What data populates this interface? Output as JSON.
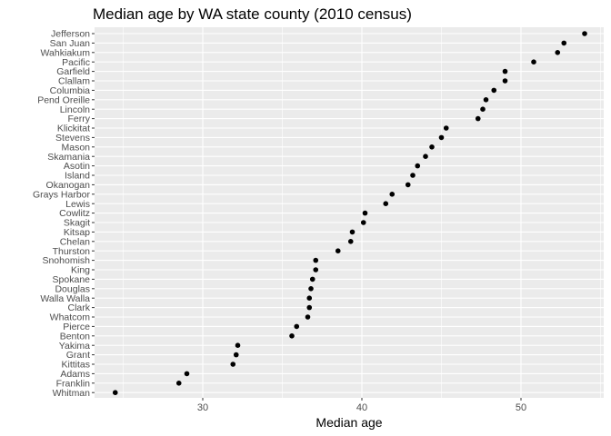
{
  "chart_data": {
    "type": "scatter",
    "title": "Median age by WA state county (2010 census)",
    "xlabel": "Median age",
    "ylabel": "",
    "xlim": [
      23.2,
      55.2
    ],
    "xticks": [
      30,
      40,
      50
    ],
    "grid": true,
    "point_color": "#000000",
    "panel_color": "#ebebeb",
    "grid_color": "#ffffff",
    "categories": [
      "Jefferson",
      "San Juan",
      "Wahkiakum",
      "Pacific",
      "Garfield",
      "Clallam",
      "Columbia",
      "Pend Oreille",
      "Lincoln",
      "Ferry",
      "Klickitat",
      "Stevens",
      "Mason",
      "Skamania",
      "Asotin",
      "Island",
      "Okanogan",
      "Grays Harbor",
      "Lewis",
      "Cowlitz",
      "Skagit",
      "Kitsap",
      "Chelan",
      "Thurston",
      "Snohomish",
      "King",
      "Spokane",
      "Douglas",
      "Walla Walla",
      "Clark",
      "Whatcom",
      "Pierce",
      "Benton",
      "Yakima",
      "Grant",
      "Kittitas",
      "Adams",
      "Franklin",
      "Whitman"
    ],
    "values": [
      54.0,
      52.7,
      52.3,
      50.8,
      49.0,
      49.0,
      48.3,
      47.8,
      47.6,
      47.3,
      45.3,
      45.0,
      44.4,
      44.0,
      43.5,
      43.2,
      42.9,
      41.9,
      41.5,
      40.2,
      40.1,
      39.4,
      39.3,
      38.5,
      37.1,
      37.1,
      36.9,
      36.8,
      36.7,
      36.7,
      36.6,
      35.9,
      35.6,
      32.2,
      32.1,
      31.9,
      29.0,
      28.5,
      24.5
    ]
  }
}
